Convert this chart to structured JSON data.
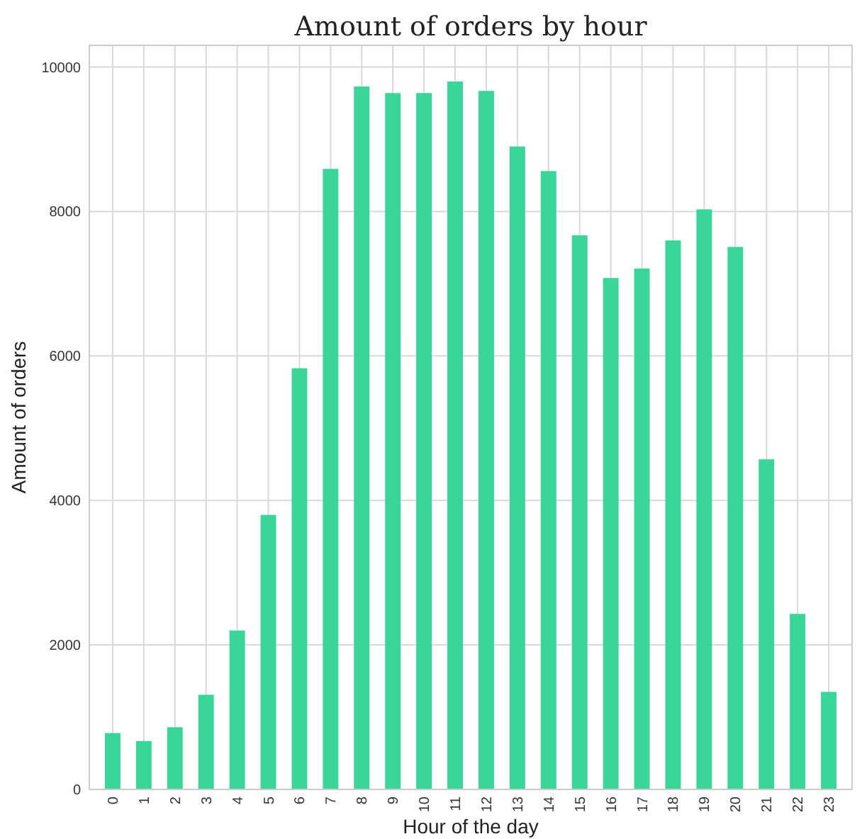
{
  "chart_data": {
    "type": "bar",
    "title": "Amount of orders by hour",
    "xlabel": "Hour of the day",
    "ylabel": "Amount of orders",
    "categories": [
      "0",
      "1",
      "2",
      "3",
      "4",
      "5",
      "6",
      "7",
      "8",
      "9",
      "10",
      "11",
      "12",
      "13",
      "14",
      "15",
      "16",
      "17",
      "18",
      "19",
      "20",
      "21",
      "22",
      "23"
    ],
    "values": [
      780,
      670,
      860,
      1310,
      2200,
      3800,
      5830,
      8590,
      9730,
      9640,
      9640,
      9800,
      9670,
      8900,
      8560,
      7670,
      7080,
      7210,
      7600,
      8030,
      7510,
      4570,
      2430,
      1350
    ],
    "color": "#3ad699",
    "ylim": [
      0,
      10300
    ],
    "yticks": [
      0,
      2000,
      4000,
      6000,
      8000,
      10000
    ],
    "grid": true
  }
}
